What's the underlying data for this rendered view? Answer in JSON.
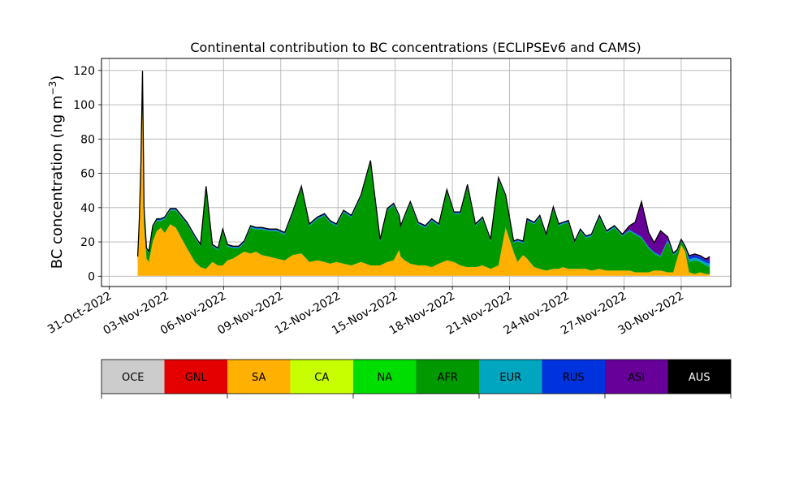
{
  "chart_data": {
    "type": "area",
    "title": "Continental contribution to BC concentrations (ECLIPSEv6 and CAMS)",
    "xlabel": "",
    "ylabel": "BC concentration (ng m",
    "ylabel_sup": "−3",
    "ylabel_close": ")",
    "ylim": [
      -6,
      127
    ],
    "xlim_days": [
      -0.4,
      32.6
    ],
    "y_ticks": [
      0,
      20,
      40,
      60,
      80,
      100,
      120
    ],
    "x_ticks": [
      "31-Oct-2022",
      "03-Nov-2022",
      "06-Nov-2022",
      "09-Nov-2022",
      "12-Nov-2022",
      "15-Nov-2022",
      "18-Nov-2022",
      "21-Nov-2022",
      "24-Nov-2022",
      "27-Nov-2022",
      "30-Nov-2022"
    ],
    "grid": true,
    "x": [
      "01-Nov-2022 12:00",
      "01-Nov-2022 14:00",
      "01-Nov-2022 16:00",
      "01-Nov-2022 18:00",
      "01-Nov-2022 20:00",
      "01-Nov-2022 23:00",
      "02-Nov-2022 02:00",
      "02-Nov-2022 07:00",
      "02-Nov-2022 12:00",
      "02-Nov-2022 17:00",
      "02-Nov-2022 22:00",
      "03-Nov-2022 05:00",
      "03-Nov-2022 12:00",
      "03-Nov-2022 19:00",
      "04-Nov-2022 02:00",
      "04-Nov-2022 12:00",
      "04-Nov-2022 19:00",
      "05-Nov-2022 02:00",
      "05-Nov-2022 10:00",
      "05-Nov-2022 17:00",
      "05-Nov-2022 23:00",
      "06-Nov-2022 05:00",
      "06-Nov-2022 12:00",
      "06-Nov-2022 19:00",
      "07-Nov-2022 02:00",
      "07-Nov-2022 10:00",
      "07-Nov-2022 17:00",
      "08-Nov-2022 00:00",
      "08-Nov-2022 10:00",
      "08-Nov-2022 19:00",
      "09-Nov-2022 05:00",
      "09-Nov-2022 15:00",
      "10-Nov-2022 02:00",
      "10-Nov-2022 12:00",
      "10-Nov-2022 22:00",
      "11-Nov-2022 07:00",
      "11-Nov-2022 14:00",
      "11-Nov-2022 22:00",
      "12-Nov-2022 07:00",
      "12-Nov-2022 17:00",
      "13-Nov-2022 05:00",
      "13-Nov-2022 17:00",
      "14-Nov-2022 05:00",
      "14-Nov-2022 14:00",
      "14-Nov-2022 22:00",
      "15-Nov-2022 05:00",
      "15-Nov-2022 07:00",
      "15-Nov-2022 12:00",
      "15-Nov-2022 19:00",
      "16-Nov-2022 05:00",
      "16-Nov-2022 14:00",
      "16-Nov-2022 22:00",
      "17-Nov-2022 07:00",
      "17-Nov-2022 17:00",
      "18-Nov-2022 02:00",
      "18-Nov-2022 10:00",
      "18-Nov-2022 19:00",
      "19-Nov-2022 05:00",
      "19-Nov-2022 14:00",
      "20-Nov-2022 00:00",
      "20-Nov-2022 10:00",
      "20-Nov-2022 19:00",
      "21-Nov-2022 05:00",
      "21-Nov-2022 10:00",
      "21-Nov-2022 17:00",
      "21-Nov-2022 22:00",
      "22-Nov-2022 07:00",
      "22-Nov-2022 14:00",
      "22-Nov-2022 22:00",
      "23-Nov-2022 07:00",
      "23-Nov-2022 14:00",
      "23-Nov-2022 19:00",
      "24-Nov-2022 02:00",
      "24-Nov-2022 10:00",
      "24-Nov-2022 17:00",
      "25-Nov-2022 00:00",
      "25-Nov-2022 07:00",
      "25-Nov-2022 17:00",
      "26-Nov-2022 02:00",
      "26-Nov-2022 12:00",
      "26-Nov-2022 22:00",
      "27-Nov-2022 07:00",
      "27-Nov-2022 14:00",
      "27-Nov-2022 22:00",
      "28-Nov-2022 07:00",
      "28-Nov-2022 14:00",
      "28-Nov-2022 22:00",
      "29-Nov-2022 07:00",
      "29-Nov-2022 14:00",
      "29-Nov-2022 19:00",
      "30-Nov-2022 00:00",
      "30-Nov-2022 05:00",
      "30-Nov-2022 10:00",
      "30-Nov-2022 17:00",
      "01-Dec-2022 00:00",
      "01-Dec-2022 07:00",
      "01-Dec-2022 12:00"
    ],
    "series": [
      {
        "name": "OCE",
        "color": "#cccccc",
        "values": [
          0.3,
          0.3,
          0.3,
          0.3,
          0.3,
          0.3,
          0.3,
          0.3,
          0.3,
          0.3,
          0.3,
          0.3,
          0.3,
          0.3,
          0.3,
          0.3,
          0.3,
          0.3,
          0.3,
          0.3,
          0.3,
          0.3,
          0.3,
          0.3,
          0.3,
          0.3,
          0.3,
          0.3,
          0.3,
          0.3,
          0.3,
          0.3,
          0.3,
          0.3,
          0.3,
          0.3,
          0.3,
          0.3,
          0.3,
          0.3,
          0.3,
          0.3,
          0.3,
          0.3,
          0.3,
          0.3,
          0.3,
          0.3,
          0.3,
          0.3,
          0.3,
          0.3,
          0.3,
          0.3,
          0.3,
          0.3,
          0.3,
          0.3,
          0.3,
          0.3,
          0.3,
          0.3,
          0.3,
          0.3,
          0.3,
          0.3,
          0.3,
          0.3,
          0.3,
          0.3,
          0.3,
          0.3,
          0.3,
          0.3,
          0.3,
          0.3,
          0.3,
          0.3,
          0.3,
          0.3,
          0.3,
          0.3,
          0.3,
          0.3,
          0.3,
          0.3,
          0.3,
          0.3,
          0.3,
          0.3,
          0.3,
          0.3,
          0.3,
          0.3,
          0.3,
          0.3,
          0.3
        ]
      },
      {
        "name": "GNL",
        "color": "#e50000",
        "values": [
          0,
          0,
          0,
          0,
          0,
          0,
          0,
          0,
          0,
          0,
          0,
          0,
          0,
          0,
          0,
          0,
          0,
          0,
          0,
          0,
          0,
          0,
          0,
          0,
          0,
          0,
          0,
          0,
          0,
          0,
          0,
          0,
          0,
          0,
          0,
          0,
          0,
          0,
          0,
          0,
          0,
          0,
          0,
          0,
          0,
          0,
          0,
          0,
          0,
          0,
          0,
          0,
          0,
          0,
          0,
          0,
          0,
          0,
          0,
          0,
          0,
          0,
          0,
          0,
          0,
          0,
          0,
          0,
          0,
          0,
          0,
          0,
          0,
          0,
          0,
          0,
          0,
          0,
          0,
          0,
          0,
          0,
          0,
          0,
          0,
          0,
          0,
          0,
          0,
          0,
          0,
          0,
          0,
          0,
          0,
          0,
          0
        ]
      },
      {
        "name": "SA",
        "color": "#ffb000",
        "values": [
          8,
          30,
          60,
          100,
          30,
          10,
          8,
          20,
          26,
          28,
          25,
          30,
          28,
          22,
          16,
          8,
          5,
          4,
          8,
          6,
          6,
          9,
          10,
          12,
          14,
          13,
          14,
          12,
          11,
          10,
          9,
          12,
          13,
          8,
          9,
          8,
          7,
          8,
          7,
          6,
          8,
          6,
          6,
          8,
          9,
          15,
          11,
          9,
          7,
          6,
          6,
          5,
          7,
          9,
          8,
          6,
          5,
          5,
          6,
          4,
          6,
          28,
          14,
          8,
          12,
          10,
          5,
          4,
          3,
          4,
          4,
          5,
          4,
          4,
          4,
          4,
          3,
          4,
          3,
          3,
          3,
          3,
          2,
          2,
          2,
          3,
          3,
          2,
          2,
          10,
          18,
          14,
          2,
          1,
          2,
          1,
          1
        ]
      },
      {
        "name": "CA",
        "color": "#c8ff00",
        "values": [
          0,
          0,
          0,
          0,
          0,
          0,
          0,
          0,
          0,
          0,
          0,
          0,
          0,
          0,
          0,
          0,
          0,
          0,
          0,
          0,
          0,
          0,
          0,
          0,
          0,
          0,
          0,
          0,
          0,
          0,
          0,
          0,
          0,
          0,
          0,
          0,
          0,
          0,
          0,
          0,
          0,
          0,
          0,
          0,
          0,
          0,
          0,
          0,
          0,
          0,
          0,
          0,
          0,
          0,
          0,
          0,
          0,
          0,
          0,
          0,
          0,
          0,
          0,
          0,
          0,
          0,
          0,
          0,
          0,
          0,
          0,
          0,
          0,
          0,
          0,
          0,
          0,
          0,
          0,
          0,
          0,
          0,
          0,
          0,
          0,
          0,
          0,
          0,
          0,
          0,
          0,
          0,
          0,
          0,
          0,
          0,
          0
        ]
      },
      {
        "name": "NA",
        "color": "#00dd00",
        "values": [
          0,
          0,
          0,
          0,
          0,
          0,
          0,
          0,
          0,
          0,
          0,
          0,
          0,
          0,
          0,
          0,
          0,
          0,
          0,
          0,
          0,
          0,
          0,
          0,
          0,
          0,
          0,
          0,
          0,
          0,
          0,
          0,
          0,
          0,
          0,
          0,
          0,
          0,
          0,
          0,
          0,
          0,
          0,
          0,
          0,
          0,
          0,
          0,
          0,
          0,
          0,
          0,
          0,
          0,
          0,
          0,
          0,
          0,
          0,
          0,
          0,
          0,
          0,
          0,
          0,
          0,
          0,
          0,
          0,
          0,
          0,
          0,
          0,
          0,
          0,
          0,
          0,
          0,
          0,
          0,
          0,
          0,
          0,
          0,
          0,
          0,
          0,
          0,
          0,
          0,
          0,
          0,
          0,
          0,
          0,
          0,
          0
        ]
      },
      {
        "name": "AFR",
        "color": "#009900",
        "values": [
          2,
          2,
          4,
          8,
          6,
          5,
          5,
          8,
          6,
          4,
          8,
          8,
          10,
          12,
          14,
          14,
          12,
          47,
          9,
          9,
          20,
          8,
          6,
          4,
          5,
          15,
          13,
          15,
          15,
          16,
          15,
          24,
          38,
          21,
          24,
          27,
          24,
          21,
          30,
          28,
          38,
          60,
          14,
          30,
          32,
          19,
          17,
          25,
          35,
          24,
          22,
          27,
          22,
          40,
          28,
          30,
          47,
          24,
          27,
          16,
          50,
          18,
          5,
          12,
          7,
          22,
          25,
          30,
          20,
          35,
          25,
          25,
          27,
          15,
          22,
          18,
          20,
          30,
          22,
          25,
          20,
          23,
          22,
          20,
          14,
          10,
          8,
          18,
          10,
          4,
          2,
          2,
          6,
          8,
          6,
          5,
          4
        ]
      },
      {
        "name": "EUR",
        "color": "#00a6bf",
        "values": [
          0.5,
          0.5,
          0.5,
          0.5,
          0.5,
          0.5,
          0.5,
          0.5,
          0.5,
          0.5,
          0.5,
          0.5,
          0.5,
          0.5,
          0.5,
          0.5,
          0.5,
          0.5,
          0.5,
          0.5,
          0.5,
          0.5,
          0.5,
          0.5,
          0.5,
          0.5,
          0.5,
          0.5,
          0.5,
          0.5,
          0.5,
          0.5,
          0.5,
          0.5,
          0.5,
          0.5,
          0.5,
          0.5,
          0.5,
          0.5,
          0.5,
          0.5,
          0.5,
          0.5,
          0.5,
          0.5,
          0.5,
          0.5,
          0.5,
          0.5,
          0.5,
          0.5,
          0.5,
          0.5,
          0.5,
          0.5,
          0.5,
          0.5,
          0.5,
          0.5,
          0.5,
          0.5,
          0.5,
          0.5,
          0.5,
          0.5,
          0.5,
          0.5,
          0.5,
          0.5,
          0.5,
          0.5,
          0.5,
          0.5,
          0.5,
          0.5,
          0.5,
          0.5,
          0.5,
          0.5,
          0.5,
          0.5,
          0.5,
          0.5,
          0.5,
          0.5,
          0.5,
          0.5,
          0.5,
          0.5,
          0.5,
          0.5,
          1.5,
          1.5,
          1.5,
          1.5,
          2
        ]
      },
      {
        "name": "RUS",
        "color": "#0033dd",
        "values": [
          0.5,
          0.5,
          0.5,
          3,
          1,
          0.5,
          0.5,
          0.5,
          0.5,
          0.5,
          0.5,
          0.5,
          0.5,
          0.5,
          0.5,
          0.5,
          0.5,
          0.5,
          0.5,
          0.5,
          0.5,
          0.5,
          0.5,
          0.5,
          0.5,
          0.5,
          0.5,
          0.5,
          0.5,
          0.5,
          0.5,
          0.5,
          0.5,
          0.5,
          0.5,
          0.5,
          0.5,
          0.5,
          0.5,
          0.5,
          0.5,
          0.5,
          0.5,
          0.5,
          0.5,
          0.5,
          0.5,
          0.5,
          0.5,
          0.5,
          0.5,
          0.5,
          0.5,
          0.5,
          0.5,
          0.5,
          0.5,
          0.5,
          0.5,
          0.5,
          0.5,
          0.5,
          0.5,
          0.5,
          0.5,
          0.5,
          0.5,
          0.5,
          0.5,
          0.5,
          0.5,
          0.5,
          0.5,
          0.5,
          0.5,
          0.5,
          0.5,
          0.5,
          0.5,
          0.5,
          0.5,
          0.5,
          0.5,
          0.5,
          0.5,
          0.5,
          0.5,
          1,
          0.5,
          0.5,
          0.5,
          0.5,
          1.5,
          1.5,
          1.5,
          1.5,
          2
        ]
      },
      {
        "name": "ASI",
        "color": "#660099",
        "values": [
          0,
          0,
          0,
          0,
          0,
          0,
          0,
          0,
          0,
          0,
          0,
          0,
          0,
          0,
          0,
          0,
          0,
          0,
          0,
          0,
          0,
          0,
          0,
          0,
          0,
          0,
          0,
          0,
          0,
          0,
          0,
          0,
          0,
          0,
          0,
          0,
          0,
          0,
          0,
          0,
          0,
          0,
          0,
          0,
          0,
          0,
          0,
          0,
          0,
          0,
          0,
          0,
          0,
          0,
          0,
          0,
          0,
          0,
          0,
          0,
          0,
          0,
          0,
          0,
          0,
          0,
          0,
          0,
          0,
          0,
          0,
          0,
          0,
          0,
          0,
          0,
          0,
          0,
          0,
          0,
          0,
          2,
          6,
          20,
          8,
          5,
          14,
          1,
          0,
          0,
          0,
          0,
          0.5,
          0.5,
          0.5,
          0.5,
          2
        ]
      },
      {
        "name": "AUS",
        "color": "#000000",
        "values": [
          0.2,
          0.2,
          0.3,
          8,
          2,
          0.2,
          0.2,
          0.2,
          0.2,
          0.2,
          0.2,
          0.2,
          0.2,
          0.2,
          0.2,
          0.2,
          0.2,
          0.2,
          0.2,
          0.2,
          0.2,
          0.2,
          0.2,
          0.2,
          0.2,
          0.2,
          0.2,
          0.2,
          0.2,
          0.2,
          0.2,
          0.2,
          0.2,
          0.2,
          0.2,
          0.2,
          0.2,
          0.2,
          0.2,
          0.2,
          0.2,
          0.2,
          0.2,
          0.2,
          0.2,
          0.2,
          0.2,
          0.2,
          0.2,
          0.2,
          0.2,
          0.2,
          0.2,
          0.2,
          0.2,
          0.2,
          0.2,
          0.2,
          0.2,
          0.2,
          0.2,
          0.2,
          0.2,
          0.2,
          0.2,
          0.2,
          0.2,
          0.2,
          0.2,
          0.2,
          0.2,
          0.2,
          0.2,
          0.2,
          0.2,
          0.2,
          0.2,
          0.2,
          0.2,
          0.2,
          0.2,
          0.2,
          0.2,
          0.2,
          0.2,
          0.2,
          0.2,
          0.2,
          0.2,
          0.2,
          0.2,
          0.2,
          0.2,
          0.2,
          0.2,
          0.2,
          0.2
        ]
      }
    ],
    "legend": {
      "placement": "below",
      "labels": [
        "OCE",
        "GNL",
        "SA",
        "CA",
        "NA",
        "AFR",
        "EUR",
        "RUS",
        "ASI",
        "AUS"
      ],
      "colors": [
        "#cccccc",
        "#e50000",
        "#ffb000",
        "#c8ff00",
        "#00dd00",
        "#009900",
        "#00a6bf",
        "#0033dd",
        "#660099",
        "#000000"
      ]
    }
  }
}
